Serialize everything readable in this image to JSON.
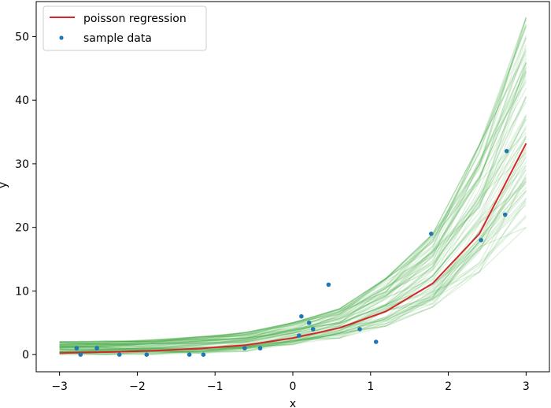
{
  "chart_data": {
    "type": "scatter",
    "xlabel": "x",
    "ylabel": "y",
    "xlim": [
      -3.3,
      3.3
    ],
    "ylim": [
      -2.7,
      55.5
    ],
    "xticks": [
      -3,
      -2,
      -1,
      0,
      1,
      2,
      3
    ],
    "yticks": [
      0,
      10,
      20,
      30,
      40,
      50
    ],
    "legend": {
      "placement": "top-left",
      "entries": [
        {
          "label": "poisson regression",
          "color": "#d62728",
          "marker": "line"
        },
        {
          "label": "sample data",
          "color": "#1f77b4",
          "marker": "dot"
        }
      ]
    },
    "series": [
      {
        "name": "poisson regression",
        "kind": "line",
        "color": "#d62728",
        "x": [
          -3.0,
          -2.4,
          -1.8,
          -1.2,
          -0.6,
          0.0,
          0.6,
          1.2,
          1.8,
          2.4,
          3.0
        ],
        "y": [
          0.25,
          0.4,
          0.6,
          0.95,
          1.5,
          2.6,
          4.2,
          6.8,
          11.2,
          19.0,
          33.2
        ]
      },
      {
        "name": "sample data",
        "kind": "scatter",
        "color": "#1f77b4",
        "x": [
          -2.78,
          -2.73,
          -2.52,
          -2.23,
          -1.88,
          -1.33,
          -1.15,
          -0.62,
          -0.42,
          0.08,
          0.11,
          0.21,
          0.26,
          0.46,
          0.86,
          1.07,
          1.78,
          2.42,
          2.73,
          2.75
        ],
        "y": [
          1,
          0,
          1,
          0,
          0,
          0,
          0,
          1,
          1,
          3,
          6,
          5,
          4,
          11,
          4,
          2,
          19,
          18,
          22,
          32
        ]
      }
    ],
    "posterior_band": {
      "color": "#2ca02c",
      "opacity": 0.15,
      "x": [
        -3.0,
        -2.4,
        -1.8,
        -1.2,
        -0.6,
        0.0,
        0.6,
        1.2,
        1.8,
        2.4,
        3.0
      ],
      "lower": [
        0.0,
        0.0,
        0.0,
        0.2,
        0.5,
        1.4,
        2.6,
        4.5,
        7.5,
        13.0,
        20.0
      ],
      "upper": [
        2.0,
        2.1,
        2.3,
        2.8,
        3.5,
        5.0,
        7.2,
        12.0,
        19.0,
        33.0,
        53.0
      ]
    }
  }
}
